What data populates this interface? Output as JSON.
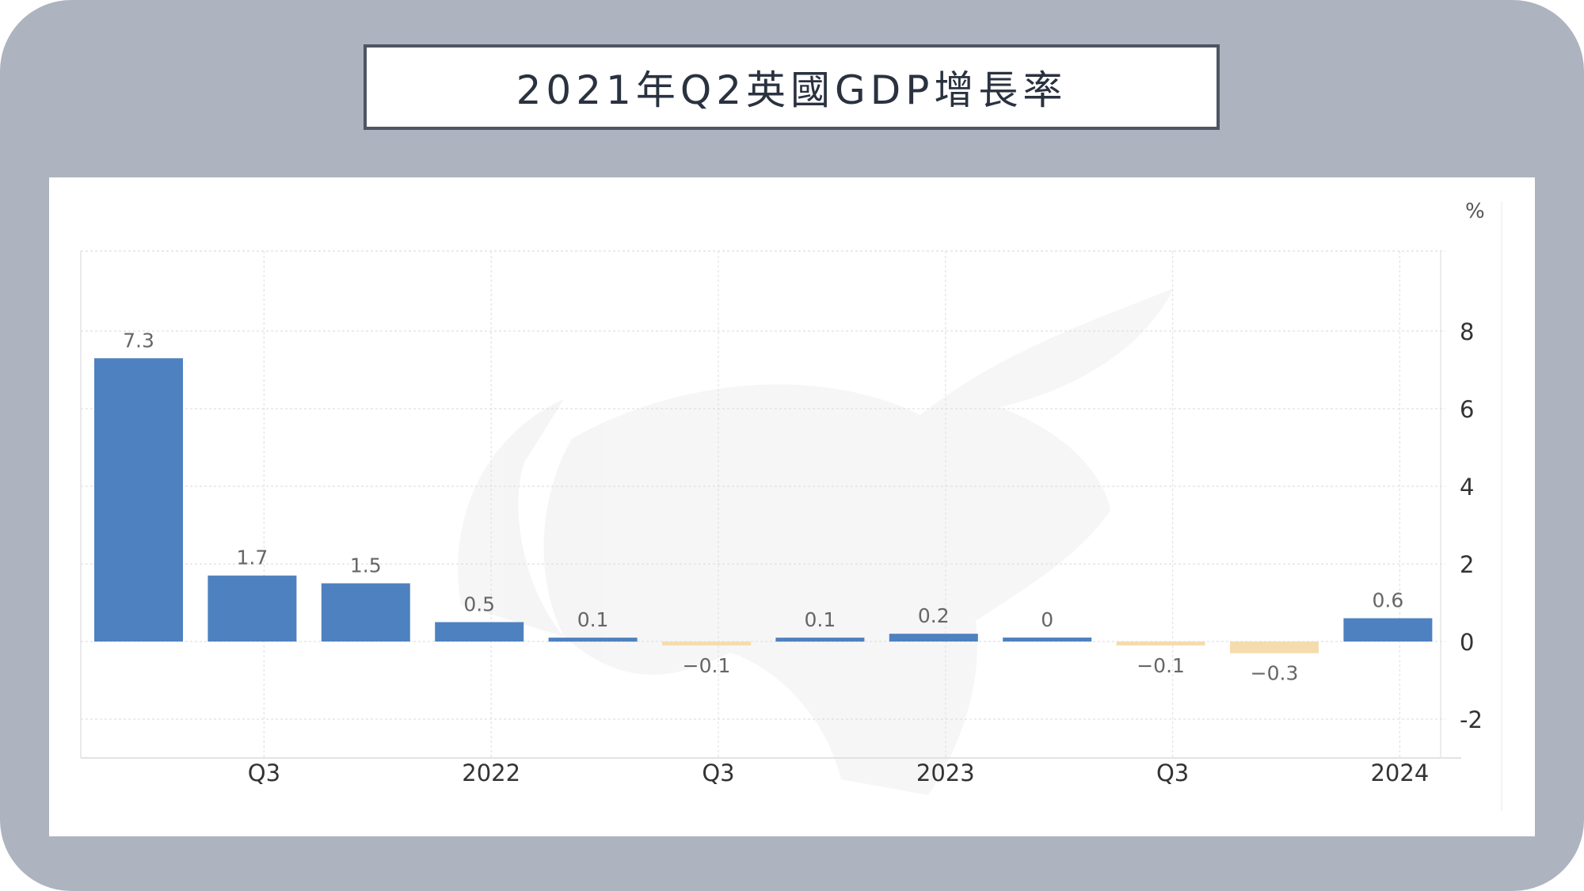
{
  "title": "2021年Q2英國GDP增長率",
  "colors": {
    "frame": "#adb3bf",
    "positive_bar": "#4e81bf",
    "negative_bar": "#f5dcae",
    "title_border": "#4e5663"
  },
  "chart_data": {
    "type": "bar",
    "title": "2021年Q2英國GDP增長率",
    "unit_label": "%",
    "xlabel": "",
    "ylabel": "",
    "values": [
      7.3,
      1.7,
      1.5,
      0.5,
      0.1,
      -0.1,
      0.1,
      0.2,
      0,
      -0.1,
      -0.3,
      0.6
    ],
    "data_labels": [
      "7.3",
      "1.7",
      "1.5",
      "0.5",
      "0.1",
      "−0.1",
      "0.1",
      "0.2",
      "0",
      "−0.1",
      "−0.3",
      "0.6"
    ],
    "x_tick_labels": [
      {
        "after_bar": 1,
        "label": "Q3"
      },
      {
        "after_bar": 3,
        "label": "2022"
      },
      {
        "after_bar": 5,
        "label": "Q3"
      },
      {
        "after_bar": 7,
        "label": "2023"
      },
      {
        "after_bar": 9,
        "label": "Q3"
      },
      {
        "after_bar": 11,
        "label": "2024"
      }
    ],
    "y_ticks": [
      8,
      6,
      4,
      2,
      0,
      -2
    ],
    "y_tick_labels": [
      "8",
      "6",
      "4",
      "2",
      "0",
      "-2"
    ],
    "ylim": [
      -3,
      10
    ],
    "y_axis_position": "right",
    "grid": true,
    "legend": "none"
  }
}
